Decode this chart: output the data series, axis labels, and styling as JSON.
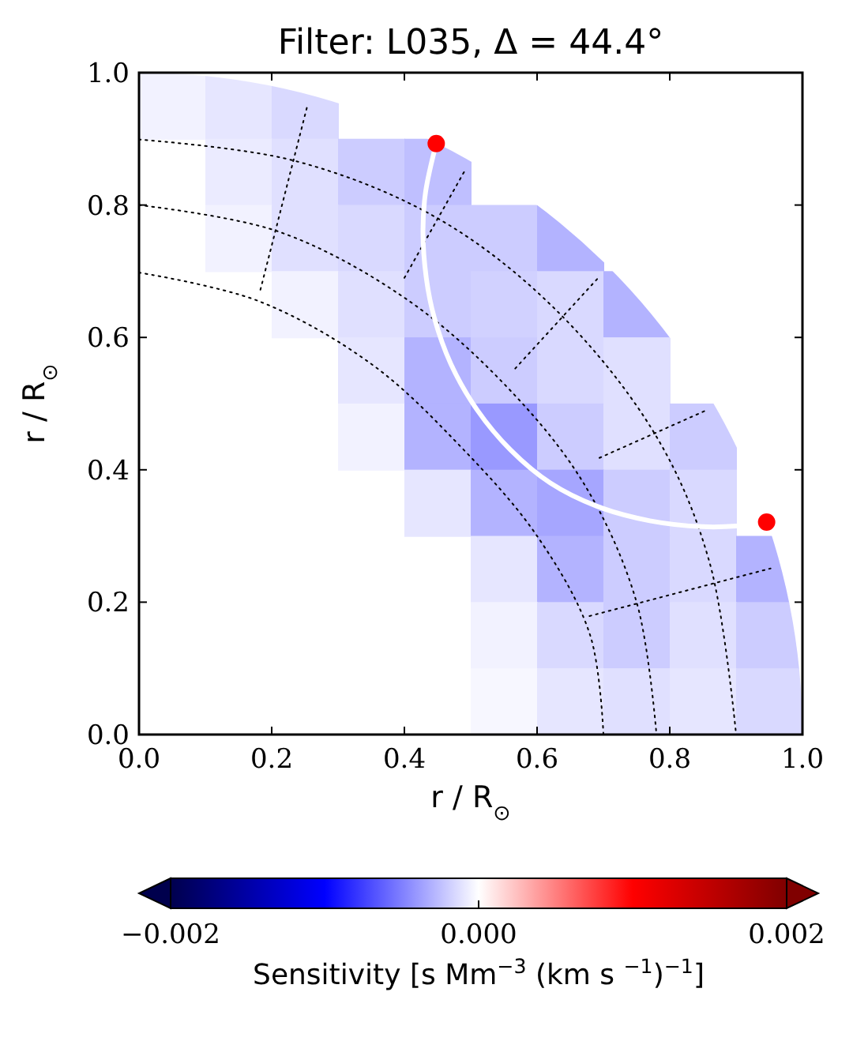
{
  "chart_data": {
    "type": "scatter",
    "title": "Filter: L035, Δ = 44.4°",
    "xlabel": "r / R$_{⊙}$",
    "ylabel": "r / R$_{⊙}$",
    "clabel": "Sensitivity [s Mm$^{−3}$ (km s $^{−1}$)$^{−1}$]",
    "xlim": [
      0,
      1
    ],
    "ylim": [
      0,
      1
    ],
    "xticks": [
      {
        "value": 0,
        "label": "0.0"
      },
      {
        "value": 0.2,
        "label": "0.2"
      },
      {
        "value": 0.4,
        "label": "0.4"
      },
      {
        "value": 0.6,
        "label": "0.6"
      },
      {
        "value": 0.8,
        "label": "0.8"
      },
      {
        "value": 1,
        "label": "1.0"
      }
    ],
    "yticks": [
      {
        "value": 0,
        "label": "0.0"
      },
      {
        "value": 0.2,
        "label": "0.2"
      },
      {
        "value": 0.4,
        "label": "0.4"
      },
      {
        "value": 0.6,
        "label": "0.6"
      },
      {
        "value": 0.8,
        "label": "0.8"
      },
      {
        "value": 1,
        "label": "1.0"
      }
    ],
    "clim": [
      -0.002,
      0.002
    ],
    "cticks": [
      {
        "value": -0.002,
        "label": "−0.002"
      },
      {
        "value": 0,
        "label": "0.000"
      },
      {
        "value": 0.002,
        "label": "0.002"
      }
    ],
    "series": [
      {
        "type": "scatter",
        "marker": "square",
        "x": [
          0.05,
          0.15,
          0.25,
          0.15,
          0.25,
          0.35,
          0.45,
          0.15,
          0.25,
          0.35,
          0.45,
          0.55,
          0.65,
          0.25,
          0.35,
          0.45,
          0.55,
          0.65,
          0.75,
          0.35,
          0.45,
          0.55,
          0.65,
          0.75,
          0.35,
          0.45,
          0.55,
          0.65,
          0.75,
          0.85,
          0.45,
          0.55,
          0.65,
          0.75,
          0.85,
          0.55,
          0.65,
          0.75,
          0.85,
          0.95,
          0.55,
          0.65,
          0.75,
          0.85,
          0.95,
          0.55,
          0.65,
          0.75,
          0.85,
          0.95
        ],
        "values": [
          0.95,
          0.95,
          0.95,
          0.85,
          0.85,
          0.85,
          0.85,
          0.75,
          0.75,
          0.75,
          0.75,
          0.75,
          0.75,
          0.65,
          0.65,
          0.65,
          0.65,
          0.65,
          0.65,
          0.55,
          0.55,
          0.55,
          0.55,
          0.55,
          0.45,
          0.45,
          0.45,
          0.45,
          0.45,
          0.45,
          0.35,
          0.35,
          0.35,
          0.35,
          0.35,
          0.25,
          0.25,
          0.25,
          0.25,
          0.25,
          0.15,
          0.15,
          0.15,
          0.15,
          0.15,
          0.05,
          0.05,
          0.05,
          0.05,
          0.05
        ],
        "colors": [
          "#f2f2ff",
          "#e6e6ff",
          "#d9d9ff",
          "#ebebff",
          "#e0e0ff",
          "#ccccff",
          "#bfbfff",
          "#f2f2ff",
          "#e0e0ff",
          "#d9d9ff",
          "#ccccff",
          "#ccccff",
          "#b3b3ff",
          "#f2f2ff",
          "#e0e0ff",
          "#ccccff",
          "#d1d1ff",
          "#d9d9ff",
          "#b3b3ff",
          "#e6e6ff",
          "#b3b3ff",
          "#ccccff",
          "#d9d9ff",
          "#e0e0ff",
          "#f2f2ff",
          "#b3b3ff",
          "#9999ff",
          "#ccccff",
          "#e0e0ff",
          "#ccccff",
          "#e6e6ff",
          "#b3b3ff",
          "#a6a6ff",
          "#ccccff",
          "#d9d9ff",
          "#e6e6ff",
          "#b3b3ff",
          "#ccccff",
          "#d9d9ff",
          "#b3b3ff",
          "#f2f2ff",
          "#d9d9ff",
          "#ccccff",
          "#e0e0ff",
          "#ccccff",
          "#f7f7ff",
          "#e6e6ff",
          "#e0e0ff",
          "#e6e6ff",
          "#d9d9ff"
        ]
      },
      {
        "type": "line",
        "color": "#000000",
        "line_style": "dotted",
        "x": [
          0,
          0.234,
          0.45,
          0.63,
          0.78,
          0.86,
          0.9
        ],
        "values": [
          0.899,
          0.867,
          0.78,
          0.64,
          0.45,
          0.26,
          0
        ]
      },
      {
        "type": "line",
        "color": "#000000",
        "line_style": "dotted",
        "x": [
          0,
          0.21,
          0.4,
          0.55,
          0.67,
          0.75,
          0.78
        ],
        "values": [
          0.8,
          0.76,
          0.66,
          0.53,
          0.38,
          0.2,
          0
        ]
      },
      {
        "type": "line",
        "color": "#000000",
        "line_style": "dotted",
        "x": [
          0,
          0.18,
          0.35,
          0.48,
          0.6,
          0.68,
          0.7
        ],
        "values": [
          0.698,
          0.655,
          0.56,
          0.44,
          0.3,
          0.15,
          0
        ]
      },
      {
        "type": "line",
        "color": "#000000",
        "line_style": "dotted",
        "x": [
          0.183,
          0.254
        ],
        "values": [
          0.672,
          0.951
        ]
      },
      {
        "type": "line",
        "color": "#000000",
        "line_style": "dotted",
        "x": [
          0.4,
          0.49
        ],
        "values": [
          0.69,
          0.85
        ]
      },
      {
        "type": "line",
        "color": "#000000",
        "line_style": "dotted",
        "x": [
          0.567,
          0.694
        ],
        "values": [
          0.553,
          0.692
        ]
      },
      {
        "type": "line",
        "color": "#000000",
        "line_style": "dotted",
        "x": [
          0.694,
          0.853
        ],
        "values": [
          0.418,
          0.489
        ]
      },
      {
        "type": "line",
        "color": "#000000",
        "line_style": "dotted",
        "x": [
          0.679,
          0.952
        ],
        "values": [
          0.179,
          0.251
        ]
      },
      {
        "type": "line",
        "color": "#ffffff",
        "line_style": "solid",
        "x": [
          0.448,
          0.432,
          0.428,
          0.433,
          0.445,
          0.47,
          0.51,
          0.56,
          0.62,
          0.69,
          0.77,
          0.85,
          0.9,
          0.946
        ],
        "values": [
          0.893,
          0.82,
          0.76,
          0.69,
          0.63,
          0.56,
          0.49,
          0.43,
          0.38,
          0.345,
          0.323,
          0.314,
          0.315,
          0.321
        ]
      },
      {
        "type": "scatter",
        "marker": "circle",
        "color": "#ff0000",
        "x": [
          0.448,
          0.946
        ],
        "values": [
          0.893,
          0.321
        ]
      }
    ]
  }
}
